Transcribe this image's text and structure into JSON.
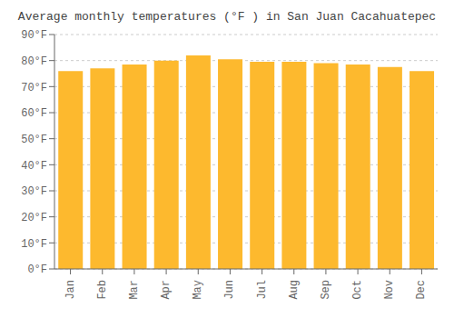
{
  "chart_data": {
    "type": "bar",
    "title": "Average monthly temperatures (°F ) in San Juan Cacahuatepec",
    "categories": [
      "Jan",
      "Feb",
      "Mar",
      "Apr",
      "May",
      "Jun",
      "Jul",
      "Aug",
      "Sep",
      "Oct",
      "Nov",
      "Dec"
    ],
    "values": [
      76,
      77,
      78.5,
      80,
      82,
      80.5,
      79.5,
      79.5,
      79,
      78.5,
      77.5,
      76
    ],
    "color": "#FDB92E",
    "ylim": [
      0,
      90
    ],
    "yticks": [
      {
        "value": 0,
        "label": "0°F"
      },
      {
        "value": 10,
        "label": "10°F"
      },
      {
        "value": 20,
        "label": "20°F"
      },
      {
        "value": 30,
        "label": "30°F"
      },
      {
        "value": 40,
        "label": "40°F"
      },
      {
        "value": 50,
        "label": "50°F"
      },
      {
        "value": 60,
        "label": "60°F"
      },
      {
        "value": 70,
        "label": "70°F"
      },
      {
        "value": 80,
        "label": "80°F"
      },
      {
        "value": 90,
        "label": "90°F"
      }
    ],
    "grid": true
  }
}
